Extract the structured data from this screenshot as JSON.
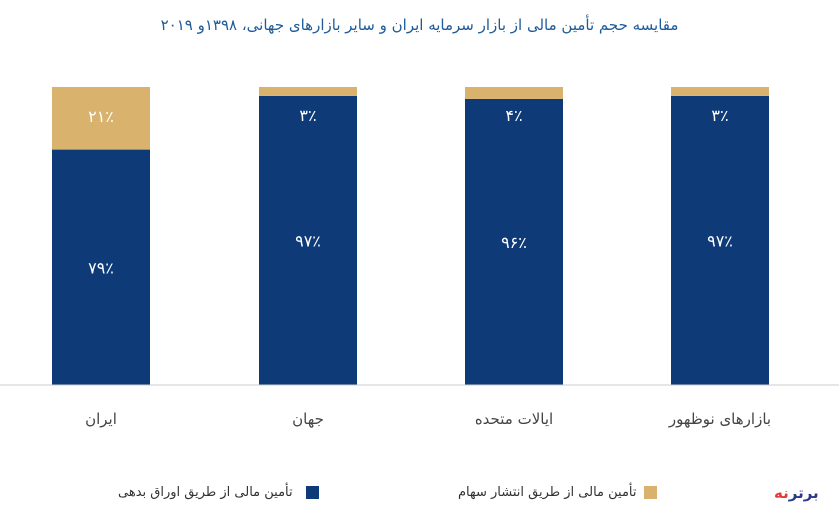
{
  "chart_data": {
    "type": "bar",
    "stacked": true,
    "percent": true,
    "title": "مقایسه حجم تأمین مالی از بازار سرمایه ایران و سایر بازارهای جهانی، ۱۳۹۸و ۲۰۱۹",
    "categories": [
      "ایران",
      "جهان",
      "ایالات متحده",
      "بازارهای نوظهور"
    ],
    "series": [
      {
        "name": "تأمین مالی از طریق اوراق بدهی",
        "values": [
          79,
          97,
          96,
          97
        ],
        "labels": [
          "۷۹٪",
          "۹۷٪",
          "۹۶٪",
          "۹۷٪"
        ],
        "color": "#0e3a78"
      },
      {
        "name": "تأمین مالی از طریق انتشار سهام",
        "values": [
          21,
          3,
          4,
          3
        ],
        "labels": [
          "۲۱٪",
          "۳٪",
          "۴٪",
          "۳٪"
        ],
        "color": "#d9b26d"
      }
    ],
    "ylim": [
      0,
      100
    ],
    "grid": false,
    "legend_position": "bottom"
  },
  "logo": {
    "text_main": "برتر",
    "text_accent": "نه"
  }
}
